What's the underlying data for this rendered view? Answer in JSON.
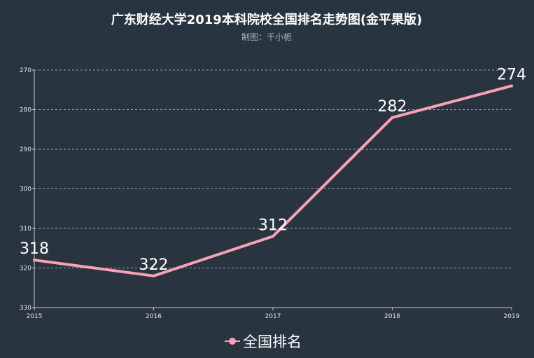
{
  "chart_data": {
    "type": "line",
    "title": "广东财经大学2019本科院校全国排名走势图(金平果版)",
    "subtitle": "制图：千小栀",
    "categories": [
      "2015",
      "2016",
      "2017",
      "2018",
      "2019"
    ],
    "series": [
      {
        "name": "全国排名",
        "values": [
          318,
          322,
          312,
          282,
          274
        ]
      }
    ],
    "y_axis": {
      "inverted": true,
      "range": [
        270,
        330
      ],
      "ticks": [
        "270",
        "280",
        "290",
        "300",
        "310",
        "320",
        "330"
      ]
    },
    "grid": true,
    "legend_position": "bottom-center",
    "colors": {
      "background": "#293441",
      "line": "#f7a1b6",
      "grid": "#a0a7b0",
      "axis": "#c8ccd2"
    }
  }
}
